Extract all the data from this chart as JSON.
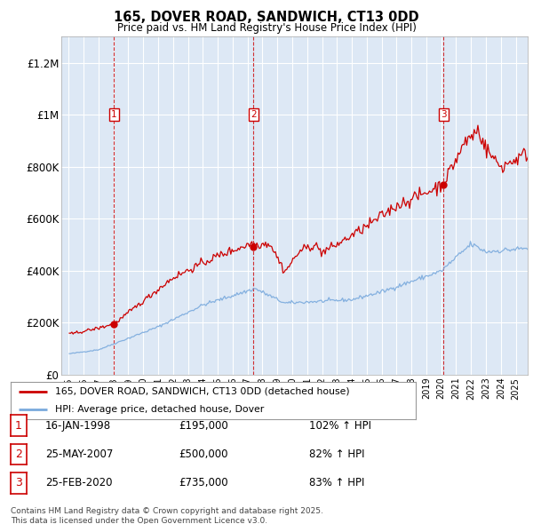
{
  "title": "165, DOVER ROAD, SANDWICH, CT13 0DD",
  "subtitle": "Price paid vs. HM Land Registry's House Price Index (HPI)",
  "legend_line1": "165, DOVER ROAD, SANDWICH, CT13 0DD (detached house)",
  "legend_line2": "HPI: Average price, detached house, Dover",
  "footnote": "Contains HM Land Registry data © Crown copyright and database right 2025.\nThis data is licensed under the Open Government Licence v3.0.",
  "transactions": [
    {
      "num": 1,
      "date": "16-JAN-1998",
      "price": 195000,
      "hpi_pct": "102% ↑ HPI",
      "x_year": 1998.04
    },
    {
      "num": 2,
      "date": "25-MAY-2007",
      "price": 500000,
      "hpi_pct": "82% ↑ HPI",
      "x_year": 2007.4
    },
    {
      "num": 3,
      "date": "25-FEB-2020",
      "price": 735000,
      "hpi_pct": "83% ↑ HPI",
      "x_year": 2020.15
    }
  ],
  "vline_color": "#cc0000",
  "hpi_color": "#7aaadd",
  "price_color": "#cc0000",
  "ylim": [
    0,
    1300000
  ],
  "xlim_start": 1994.5,
  "xlim_end": 2025.8,
  "yticks": [
    0,
    200000,
    400000,
    600000,
    800000,
    1000000,
    1200000
  ],
  "ytick_labels": [
    "£0",
    "£200K",
    "£400K",
    "£600K",
    "£800K",
    "£1M",
    "£1.2M"
  ],
  "xtick_years": [
    1995,
    1996,
    1997,
    1998,
    1999,
    2000,
    2001,
    2002,
    2003,
    2004,
    2005,
    2006,
    2007,
    2008,
    2009,
    2010,
    2011,
    2012,
    2013,
    2014,
    2015,
    2016,
    2017,
    2018,
    2019,
    2020,
    2021,
    2022,
    2023,
    2024,
    2025
  ],
  "chart_bg": "#dde8f5",
  "fig_bg": "#ffffff",
  "grid_color": "#ffffff"
}
